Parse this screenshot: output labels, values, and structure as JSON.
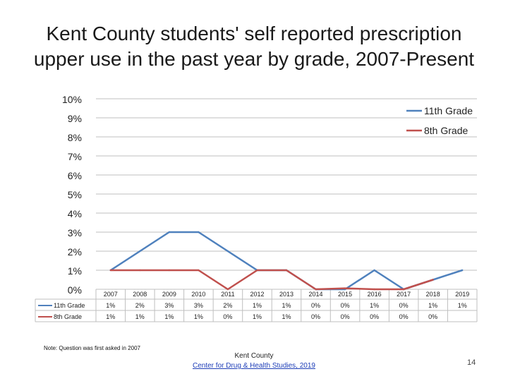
{
  "title_line1": "Kent County students' self reported prescription",
  "title_line2": "upper use in the past year by grade, 2007-Present",
  "note": "Note: Question was first asked in 2007",
  "footer_line1": "Kent County",
  "footer_link": "Center for Drug & Health Studies, 2019",
  "page_number": "14",
  "chart_data": {
    "type": "line",
    "title": "",
    "xlabel": "",
    "ylabel": "",
    "ylim": [
      0,
      10
    ],
    "y_ticks": [
      "0%",
      "1%",
      "2%",
      "3%",
      "4%",
      "5%",
      "6%",
      "7%",
      "8%",
      "9%",
      "10%"
    ],
    "categories": [
      "2007",
      "2008",
      "2009",
      "2010",
      "2011",
      "2012",
      "2013",
      "2014",
      "2015",
      "2016",
      "2017",
      "2018",
      "2019"
    ],
    "grid": true,
    "legend_position": "top-right",
    "series": [
      {
        "name": "11th Grade",
        "color": "#4f81bd",
        "values": [
          1,
          2,
          3,
          3,
          2,
          1,
          1,
          0,
          0,
          1,
          0,
          0.5,
          1
        ],
        "table_labels": [
          "1%",
          "2%",
          "3%",
          "3%",
          "2%",
          "1%",
          "1%",
          "0%",
          "0%",
          "1%",
          "0%",
          "1%",
          "1%"
        ]
      },
      {
        "name": "8th Grade",
        "color": "#c0504d",
        "values": [
          1,
          1,
          1,
          1,
          0,
          1,
          1,
          0,
          0.05,
          0,
          0,
          0.5,
          null
        ],
        "table_labels": [
          "1%",
          "1%",
          "1%",
          "1%",
          "0%",
          "1%",
          "1%",
          "0%",
          "0%",
          "0%",
          "0%",
          "0%",
          ""
        ]
      }
    ]
  }
}
